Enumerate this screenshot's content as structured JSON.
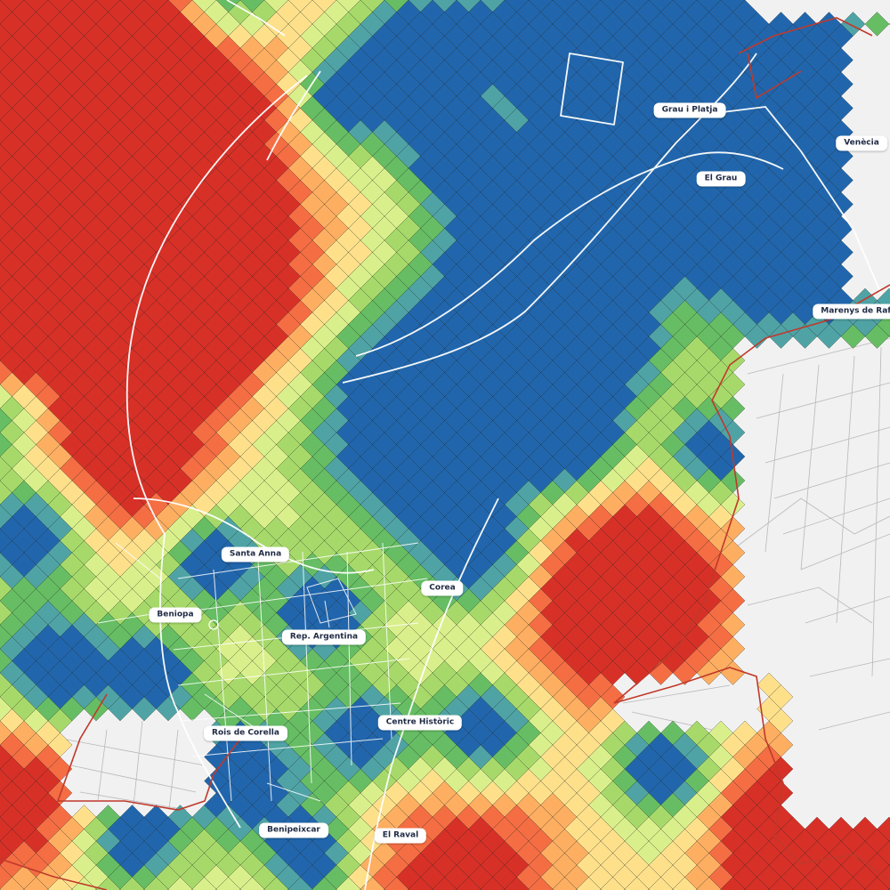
{
  "map": {
    "palette": [
      "#d73027",
      "#f46d43",
      "#fdae61",
      "#fee08b",
      "#d9ef8b",
      "#a6d96a",
      "#66bd63",
      "#4fa3a5",
      "#2166ac"
    ],
    "colors": {
      "background": "#f1f1f1",
      "grid_line": "#1a1a1a",
      "road": "#ffffff",
      "street": "#b8b8b8",
      "boundary": "#c0392b",
      "label_bg": "#ffffff",
      "label_text": "#1f2a44"
    },
    "labels": [
      {
        "id": "grau-i-platja",
        "text": "Grau i Platja"
      },
      {
        "id": "venecia",
        "text": "Venècia"
      },
      {
        "id": "el-grau",
        "text": "El Grau"
      },
      {
        "id": "marenys-de-rafalcaid",
        "text": "Marenys de Rafalca"
      },
      {
        "id": "santa-anna",
        "text": "Santa Anna"
      },
      {
        "id": "corea",
        "text": "Corea"
      },
      {
        "id": "beniopa",
        "text": "Beniopa"
      },
      {
        "id": "rep-argentina",
        "text": "Rep. Argentina"
      },
      {
        "id": "centre-historic",
        "text": "Centre Històric"
      },
      {
        "id": "rois-de-corella",
        "text": "Rois de Corella"
      },
      {
        "id": "benipeixcar",
        "text": "Benipeixcar"
      },
      {
        "id": "el-raval",
        "text": "El Raval"
      }
    ]
  }
}
